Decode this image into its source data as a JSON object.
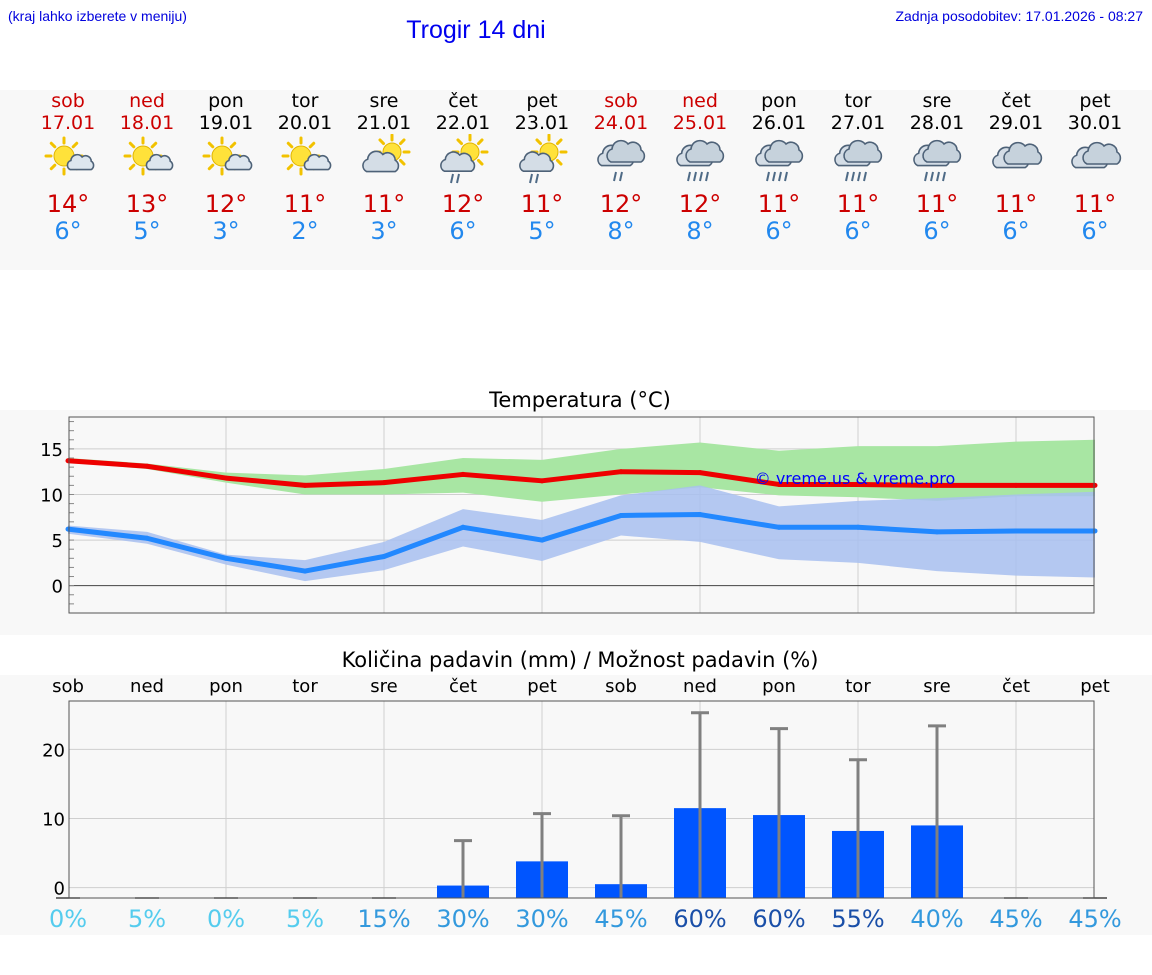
{
  "header": {
    "menu_hint": "(kraj lahko izberete v meniju)",
    "title": "Trogir 14 dni",
    "last_update": "Zadnja posodobitev: 17.01.2026 - 08:27"
  },
  "days": [
    {
      "name": "sob",
      "date": "17.01",
      "weekend": true,
      "icon": "sunny-partly-cloudy-icon",
      "tmax": "14°",
      "tmin": "6°"
    },
    {
      "name": "ned",
      "date": "18.01",
      "weekend": true,
      "icon": "sunny-partly-cloudy-icon",
      "tmax": "13°",
      "tmin": "5°"
    },
    {
      "name": "pon",
      "date": "19.01",
      "weekend": false,
      "icon": "sunny-partly-cloudy-icon",
      "tmax": "12°",
      "tmin": "3°"
    },
    {
      "name": "tor",
      "date": "20.01",
      "weekend": false,
      "icon": "sunny-partly-cloudy-icon",
      "tmax": "11°",
      "tmin": "2°"
    },
    {
      "name": "sre",
      "date": "21.01",
      "weekend": false,
      "icon": "cloudy-sunny-icon",
      "tmax": "11°",
      "tmin": "3°"
    },
    {
      "name": "čet",
      "date": "22.01",
      "weekend": false,
      "icon": "sun-cloud-rain-icon",
      "tmax": "12°",
      "tmin": "6°"
    },
    {
      "name": "pet",
      "date": "23.01",
      "weekend": false,
      "icon": "sun-cloud-rain-icon",
      "tmax": "11°",
      "tmin": "5°"
    },
    {
      "name": "sob",
      "date": "24.01",
      "weekend": true,
      "icon": "cloud-rain-icon",
      "tmax": "12°",
      "tmin": "8°"
    },
    {
      "name": "ned",
      "date": "25.01",
      "weekend": true,
      "icon": "cloud-heavy-rain-icon",
      "tmax": "12°",
      "tmin": "8°"
    },
    {
      "name": "pon",
      "date": "26.01",
      "weekend": false,
      "icon": "cloud-heavy-rain-icon",
      "tmax": "11°",
      "tmin": "6°"
    },
    {
      "name": "tor",
      "date": "27.01",
      "weekend": false,
      "icon": "cloud-heavy-rain-icon",
      "tmax": "11°",
      "tmin": "6°"
    },
    {
      "name": "sre",
      "date": "28.01",
      "weekend": false,
      "icon": "cloud-heavy-rain-icon",
      "tmax": "11°",
      "tmin": "6°"
    },
    {
      "name": "čet",
      "date": "29.01",
      "weekend": false,
      "icon": "overcast-cloud-icon",
      "tmax": "11°",
      "tmin": "6°"
    },
    {
      "name": "pet",
      "date": "30.01",
      "weekend": false,
      "icon": "overcast-cloud-icon",
      "tmax": "11°",
      "tmin": "6°"
    }
  ],
  "colors": {
    "max_line": "#ee0000",
    "min_line": "#2288ff",
    "max_band": "#a8e6a3",
    "min_band": "#a8c0f0",
    "overlap_band": "#7cc4a8",
    "precip_bar": "#0055ff",
    "error_bar": "#808080"
  },
  "chart_data": [
    {
      "type": "line",
      "title": "Temperatura (°C)",
      "watermark": "© vreme.us & vreme.pro",
      "x": [
        "17.01",
        "18.01",
        "19.01",
        "20.01",
        "21.01",
        "22.01",
        "23.01",
        "24.01",
        "25.01",
        "26.01",
        "27.01",
        "28.01",
        "29.01",
        "30.01"
      ],
      "ylim": [
        -3,
        18.5
      ],
      "yticks": [
        0,
        5,
        10,
        15
      ],
      "series": [
        {
          "name": "max",
          "values": [
            13.7,
            13.1,
            11.8,
            11.0,
            11.3,
            12.2,
            11.5,
            12.5,
            12.4,
            11.1,
            11.1,
            11.0,
            11.0,
            11.0
          ],
          "band_low": [
            13.5,
            12.8,
            11.3,
            10.0,
            10.0,
            10.2,
            9.2,
            10.0,
            10.8,
            9.9,
            9.7,
            9.3,
            9.8,
            9.8
          ],
          "band_high": [
            14.0,
            13.4,
            12.4,
            12.1,
            12.8,
            14.0,
            13.8,
            15.0,
            15.7,
            14.8,
            15.3,
            15.3,
            15.8,
            16.0
          ]
        },
        {
          "name": "min",
          "values": [
            6.2,
            5.2,
            3.0,
            1.6,
            3.2,
            6.4,
            5.0,
            7.7,
            7.8,
            6.4,
            6.4,
            5.9,
            6.0,
            6.0
          ],
          "band_low": [
            5.7,
            4.6,
            2.3,
            0.5,
            1.7,
            4.3,
            2.7,
            5.5,
            4.8,
            2.9,
            2.5,
            1.6,
            1.1,
            0.9
          ],
          "band_high": [
            6.6,
            5.9,
            3.4,
            2.8,
            4.8,
            8.4,
            7.2,
            9.9,
            11.0,
            8.7,
            9.3,
            9.6,
            10.0,
            10.3
          ]
        }
      ]
    },
    {
      "type": "bar",
      "title": "Količina padavin (mm) / Možnost padavin (%)",
      "categories": [
        "sob",
        "ned",
        "pon",
        "tor",
        "sre",
        "čet",
        "pet",
        "sob",
        "ned",
        "pon",
        "tor",
        "sre",
        "čet",
        "pet"
      ],
      "ylim": [
        -1.5,
        27
      ],
      "yticks": [
        0,
        10,
        20
      ],
      "values": [
        0,
        0,
        0,
        0,
        0,
        0.3,
        3.8,
        0.5,
        11.5,
        10.5,
        8.2,
        9.0,
        0,
        0
      ],
      "error_high": [
        0,
        0,
        0,
        0,
        0,
        6.8,
        10.7,
        10.4,
        25.3,
        23.0,
        18.5,
        23.4,
        0,
        0
      ],
      "probability": [
        "0%",
        "5%",
        "0%",
        "5%",
        "15%",
        "30%",
        "30%",
        "45%",
        "60%",
        "60%",
        "55%",
        "40%",
        "45%",
        "45%"
      ]
    }
  ]
}
